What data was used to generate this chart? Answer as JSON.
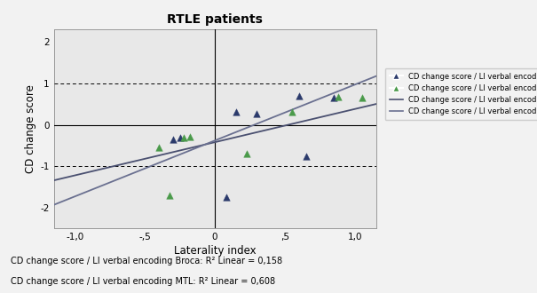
{
  "title": "RTLE patients",
  "xlabel": "Laterality index",
  "ylabel": "CD change score",
  "xlim": [
    -1.15,
    1.15
  ],
  "ylim": [
    -2.5,
    2.3
  ],
  "xticks": [
    -1.0,
    -0.5,
    0.0,
    0.5,
    1.0
  ],
  "xtick_labels": [
    "-1,0",
    "-,5",
    "0",
    ",5",
    "1,0"
  ],
  "yticks": [
    -2,
    -1,
    0,
    1,
    2
  ],
  "ytick_labels": [
    "-2",
    "-1",
    "0",
    "1",
    "2"
  ],
  "hlines": [
    -1.0,
    1.0
  ],
  "bg_color": "#e8e8e8",
  "fig_color": "#f2f2f2",
  "broca_color": "#2b3a6b",
  "mtl_color": "#4a9a4a",
  "broca_points": [
    [
      -0.3,
      -0.35
    ],
    [
      -0.25,
      -0.3
    ],
    [
      0.15,
      0.3
    ],
    [
      0.3,
      0.27
    ],
    [
      0.6,
      0.7
    ],
    [
      0.85,
      0.65
    ],
    [
      0.65,
      -0.75
    ],
    [
      0.08,
      -1.75
    ]
  ],
  "mtl_points": [
    [
      -0.4,
      -0.55
    ],
    [
      -0.22,
      -0.3
    ],
    [
      -0.18,
      -0.28
    ],
    [
      -0.32,
      -1.7
    ],
    [
      0.23,
      -0.7
    ],
    [
      0.55,
      0.3
    ],
    [
      0.88,
      0.68
    ],
    [
      1.05,
      0.65
    ]
  ],
  "broca_line_x": [
    -1.15,
    1.15
  ],
  "broca_line_y": [
    -1.34,
    0.5
  ],
  "mtl_line_x": [
    -1.15,
    1.15
  ],
  "mtl_line_y": [
    -1.93,
    1.17
  ],
  "line_color_broca": "#4a5070",
  "line_color_mtl": "#6a7090",
  "annotation_text_broca": "CD change score / LI verbal encoding Broca: R² Linear = 0,158",
  "annotation_text_mtl": "CD change score / LI verbal encoding MTL: R² Linear = 0,608",
  "legend_entries": [
    "CD change score / LI verbal encoding Broca",
    "CD change score / LI verbal encoding MTL",
    "CD change score / LI verbal encoding Broca",
    "CD change score / LI verbal encoding MTL"
  ]
}
